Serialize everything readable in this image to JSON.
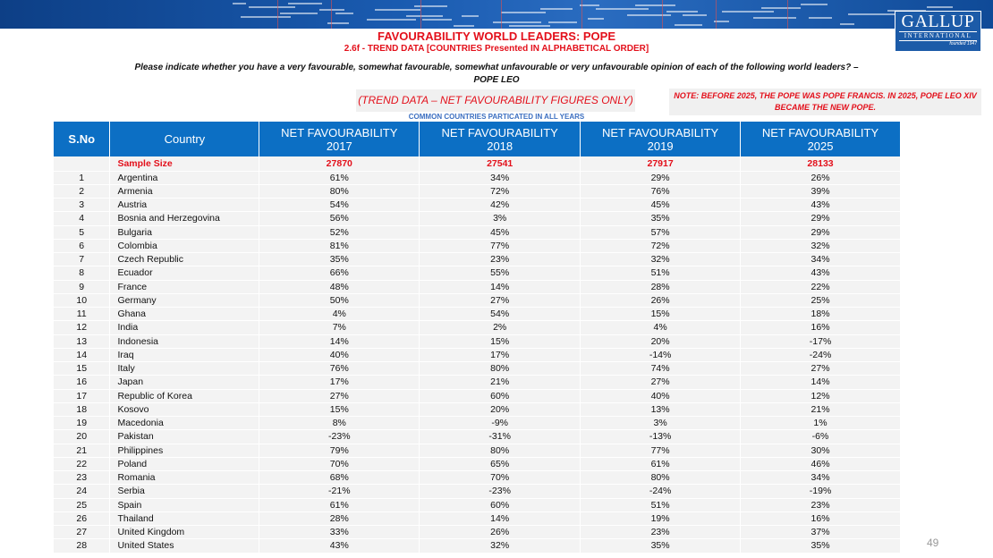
{
  "header": {
    "title": "FAVOURABILITY WORLD LEADERS: POPE",
    "subtitle": "2.6f - TREND DATA [COUNTRIES Presented IN ALPHABETICAL ORDER]",
    "question_line1": "Please indicate whether you have a very favourable, somewhat favourable, somewhat unfavourable or very unfavourable opinion of each of the following world leaders? –",
    "question_line2": "POPE LEO",
    "trend_note": "(TREND DATA – NET FAVOURABILITY FIGURES ONLY)",
    "note": "NOTE: BEFORE 2025, THE POPE WAS POPE FRANCIS. IN 2025, POPE LEO XIV BECAME THE NEW POPE.",
    "common": "COMMON COUNTRIES PARTICATED IN ALL YEARS"
  },
  "logo": {
    "name": "GALLUP",
    "sub": "INTERNATIONAL",
    "founded": "founded 1947",
    "color": "#1c5ba8"
  },
  "colors": {
    "header_bg": "#0c6fc4",
    "accent_red": "#e3101b"
  },
  "table": {
    "headers": [
      "S.No",
      "Country",
      "NET FAVOURABILITY\n2017",
      "NET FAVOURABILITY\n2018",
      "NET FAVOURABILITY\n2019",
      "NET FAVOURABILITY\n2025"
    ],
    "sample": {
      "label": "Sample Size",
      "values": [
        "27870",
        "27541",
        "27917",
        "28133"
      ]
    },
    "rows": [
      [
        "1",
        "Argentina",
        "61%",
        "34%",
        "29%",
        "26%"
      ],
      [
        "2",
        "Armenia",
        "80%",
        "72%",
        "76%",
        "39%"
      ],
      [
        "3",
        "Austria",
        "54%",
        "42%",
        "45%",
        "43%"
      ],
      [
        "4",
        "Bosnia and Herzegovina",
        "56%",
        "3%",
        "35%",
        "29%"
      ],
      [
        "5",
        "Bulgaria",
        "52%",
        "45%",
        "57%",
        "29%"
      ],
      [
        "6",
        "Colombia",
        "81%",
        "77%",
        "72%",
        "32%"
      ],
      [
        "7",
        "Czech Republic",
        "35%",
        "23%",
        "32%",
        "34%"
      ],
      [
        "8",
        "Ecuador",
        "66%",
        "55%",
        "51%",
        "43%"
      ],
      [
        "9",
        "France",
        "48%",
        "14%",
        "28%",
        "22%"
      ],
      [
        "10",
        "Germany",
        "50%",
        "27%",
        "26%",
        "25%"
      ],
      [
        "11",
        "Ghana",
        "4%",
        "54%",
        "15%",
        "18%"
      ],
      [
        "12",
        "India",
        "7%",
        "2%",
        "4%",
        "16%"
      ],
      [
        "13",
        "Indonesia",
        "14%",
        "15%",
        "20%",
        "-17%"
      ],
      [
        "14",
        "Iraq",
        "40%",
        "17%",
        "-14%",
        "-24%"
      ],
      [
        "15",
        "Italy",
        "76%",
        "80%",
        "74%",
        "27%"
      ],
      [
        "16",
        "Japan",
        "17%",
        "21%",
        "27%",
        "14%"
      ],
      [
        "17",
        "Republic of Korea",
        "27%",
        "60%",
        "40%",
        "12%"
      ],
      [
        "18",
        "Kosovo",
        "15%",
        "20%",
        "13%",
        "21%"
      ],
      [
        "19",
        "Macedonia",
        "8%",
        "-9%",
        "3%",
        "1%"
      ],
      [
        "20",
        "Pakistan",
        "-23%",
        "-31%",
        "-13%",
        "-6%"
      ],
      [
        "21",
        "Philippines",
        "79%",
        "80%",
        "77%",
        "30%"
      ],
      [
        "22",
        "Poland",
        "70%",
        "65%",
        "61%",
        "46%"
      ],
      [
        "23",
        "Romania",
        "68%",
        "70%",
        "80%",
        "34%"
      ],
      [
        "24",
        "Serbia",
        "-21%",
        "-23%",
        "-24%",
        "-19%"
      ],
      [
        "25",
        "Spain",
        "61%",
        "60%",
        "51%",
        "23%"
      ],
      [
        "26",
        "Thailand",
        "28%",
        "14%",
        "19%",
        "16%"
      ],
      [
        "27",
        "United Kingdom",
        "33%",
        "26%",
        "23%",
        "37%"
      ],
      [
        "28",
        "United States",
        "43%",
        "32%",
        "35%",
        "35%"
      ]
    ]
  },
  "page_number": "49"
}
